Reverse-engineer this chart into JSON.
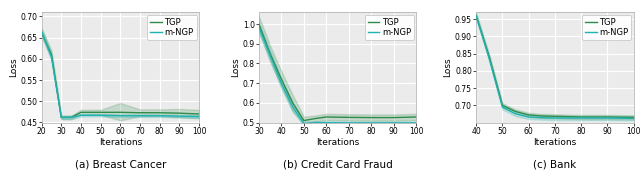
{
  "subplot_captions": [
    "(a) Breast Cancer",
    "(b) Credit Card Fraud",
    "(c) Bank"
  ],
  "ylabel": "Loss",
  "xlabel": "Iterations",
  "tgp_color": "#2e8b4a",
  "mngp_color": "#20b2b2",
  "fill_alpha": 0.2,
  "line_width": 1.0,
  "legend_labels": [
    "TGP",
    "m-NGP"
  ],
  "bc": {
    "x": [
      20,
      25,
      30,
      35,
      40,
      50,
      60,
      70,
      80,
      90,
      100
    ],
    "tgp_mean": [
      0.662,
      0.61,
      0.462,
      0.462,
      0.474,
      0.474,
      0.474,
      0.473,
      0.473,
      0.472,
      0.47
    ],
    "tgp_low": [
      0.652,
      0.6,
      0.458,
      0.458,
      0.468,
      0.468,
      0.455,
      0.465,
      0.465,
      0.462,
      0.46
    ],
    "tgp_high": [
      0.672,
      0.62,
      0.466,
      0.466,
      0.48,
      0.48,
      0.496,
      0.481,
      0.481,
      0.482,
      0.48
    ],
    "mngp_mean": [
      0.665,
      0.605,
      0.462,
      0.462,
      0.467,
      0.467,
      0.466,
      0.466,
      0.466,
      0.465,
      0.464
    ],
    "mngp_low": [
      0.658,
      0.597,
      0.458,
      0.458,
      0.464,
      0.464,
      0.463,
      0.463,
      0.463,
      0.462,
      0.461
    ],
    "mngp_high": [
      0.672,
      0.613,
      0.466,
      0.466,
      0.47,
      0.47,
      0.469,
      0.469,
      0.469,
      0.468,
      0.467
    ],
    "ylim": [
      0.45,
      0.71
    ],
    "yticks": [
      0.45,
      0.5,
      0.55,
      0.6,
      0.65,
      0.7
    ],
    "xlim": [
      20,
      100
    ],
    "xticks": [
      20,
      30,
      40,
      50,
      60,
      70,
      80,
      90,
      100
    ]
  },
  "ccf": {
    "x": [
      30,
      35,
      40,
      45,
      50,
      55,
      60,
      70,
      80,
      90,
      100
    ],
    "tgp_mean": [
      1.0,
      0.85,
      0.72,
      0.6,
      0.51,
      0.52,
      0.528,
      0.526,
      0.525,
      0.525,
      0.528
    ],
    "tgp_low": [
      0.96,
      0.81,
      0.68,
      0.56,
      0.49,
      0.505,
      0.512,
      0.51,
      0.509,
      0.509,
      0.512
    ],
    "tgp_high": [
      1.04,
      0.89,
      0.76,
      0.64,
      0.53,
      0.535,
      0.544,
      0.542,
      0.541,
      0.541,
      0.544
    ],
    "mngp_mean": [
      0.985,
      0.84,
      0.7,
      0.58,
      0.495,
      0.499,
      0.499,
      0.498,
      0.498,
      0.498,
      0.498
    ],
    "mngp_low": [
      0.96,
      0.815,
      0.675,
      0.555,
      0.485,
      0.491,
      0.492,
      0.491,
      0.491,
      0.491,
      0.491
    ],
    "mngp_high": [
      1.01,
      0.865,
      0.725,
      0.605,
      0.505,
      0.507,
      0.506,
      0.505,
      0.505,
      0.505,
      0.505
    ],
    "ylim": [
      0.5,
      1.06
    ],
    "yticks": [
      0.5,
      0.6,
      0.7,
      0.8,
      0.9,
      1.0
    ],
    "xlim": [
      30,
      100
    ],
    "xticks": [
      30,
      40,
      50,
      60,
      70,
      80,
      90,
      100
    ]
  },
  "bank": {
    "x": [
      40,
      45,
      50,
      55,
      60,
      65,
      70,
      80,
      90,
      100
    ],
    "tgp_mean": [
      0.96,
      0.84,
      0.7,
      0.682,
      0.672,
      0.669,
      0.668,
      0.666,
      0.666,
      0.665
    ],
    "tgp_low": [
      0.953,
      0.833,
      0.694,
      0.676,
      0.666,
      0.663,
      0.662,
      0.66,
      0.66,
      0.659
    ],
    "tgp_high": [
      0.967,
      0.847,
      0.706,
      0.688,
      0.678,
      0.675,
      0.674,
      0.672,
      0.672,
      0.671
    ],
    "mngp_mean": [
      0.96,
      0.835,
      0.695,
      0.675,
      0.666,
      0.664,
      0.663,
      0.663,
      0.663,
      0.662
    ],
    "mngp_low": [
      0.953,
      0.828,
      0.688,
      0.668,
      0.66,
      0.658,
      0.657,
      0.657,
      0.657,
      0.656
    ],
    "mngp_high": [
      0.967,
      0.842,
      0.702,
      0.682,
      0.672,
      0.67,
      0.669,
      0.669,
      0.669,
      0.668
    ],
    "ylim": [
      0.65,
      0.97
    ],
    "yticks": [
      0.7,
      0.75,
      0.8,
      0.85,
      0.9,
      0.95
    ],
    "xlim": [
      40,
      100
    ],
    "xticks": [
      40,
      50,
      60,
      70,
      80,
      90,
      100
    ]
  },
  "bg_color": "#ebebeb",
  "grid_color": "#ffffff",
  "fig_bg_color": "#ffffff",
  "tick_fontsize": 5.5,
  "label_fontsize": 6.5,
  "legend_fontsize": 6.0,
  "caption_fontsize": 7.5
}
